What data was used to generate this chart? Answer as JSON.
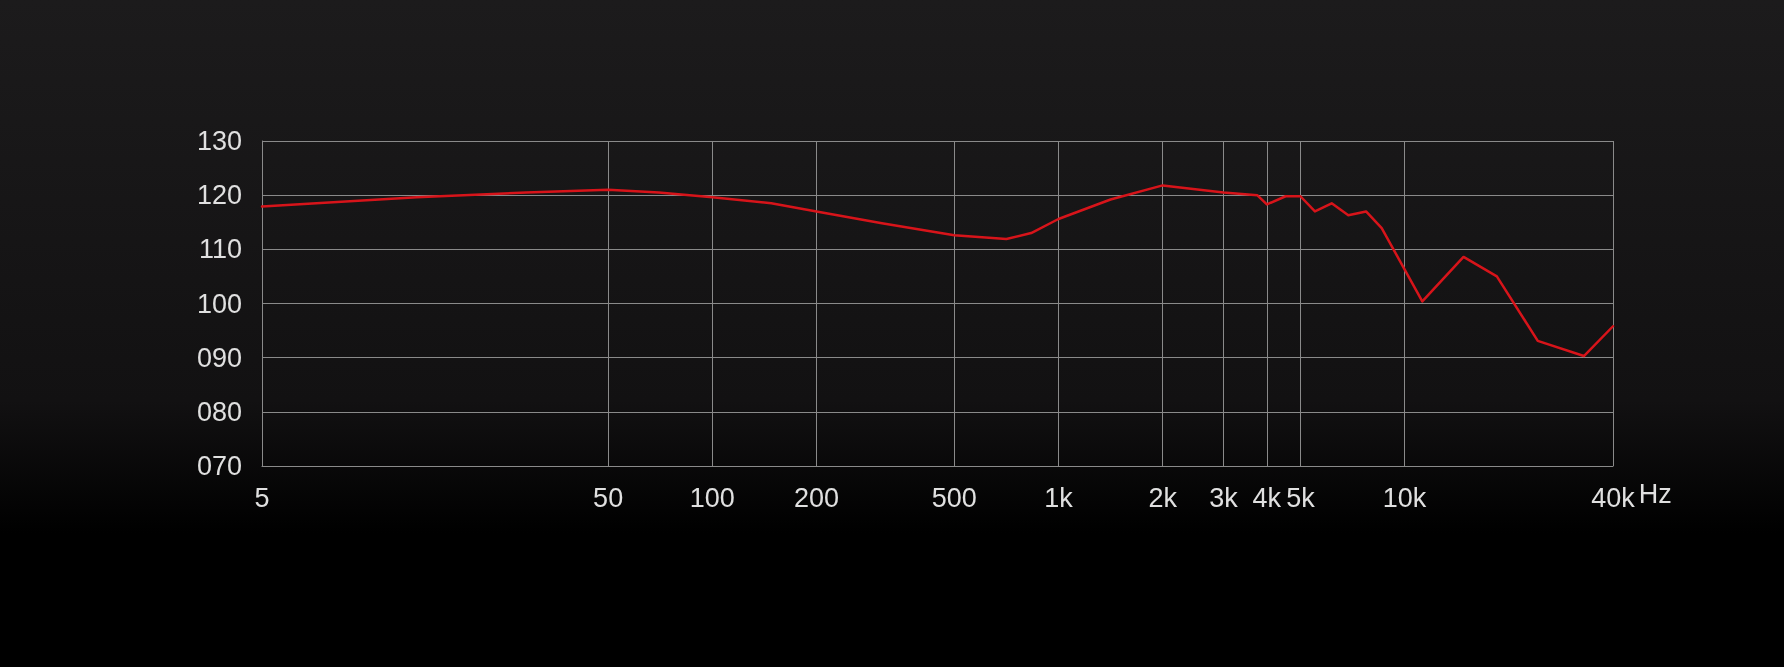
{
  "chart_data": {
    "type": "line",
    "xlabel": "Hz",
    "log": "x",
    "grid": true,
    "marker": "none",
    "line_style": "solid",
    "xlim": [
      5,
      40000
    ],
    "xticks": [
      5,
      50,
      100,
      200,
      500,
      {
        "value": 1000,
        "label": "1k"
      },
      {
        "value": 2000,
        "label": "2k"
      },
      {
        "value": 3000,
        "label": "3k"
      },
      {
        "value": 4000,
        "label": "4k"
      },
      {
        "value": 5000,
        "label": "5k"
      },
      {
        "value": 10000,
        "label": "10k"
      },
      {
        "value": 40000,
        "label": "40k"
      }
    ],
    "ylim": [
      70,
      130
    ],
    "yticks": [
      {
        "value": 70,
        "label": "070"
      },
      {
        "value": 80,
        "label": "080"
      },
      {
        "value": 90,
        "label": "090"
      },
      100,
      110,
      120,
      130
    ],
    "series": [
      {
        "color": "#d7141a",
        "x": [
          5,
          14,
          29,
          50,
          70,
          100,
          148,
          200,
          309,
          500,
          707,
          834,
          1000,
          1414,
          2000,
          3000,
          3751,
          4000,
          4532,
          5000,
          5507,
          6156,
          6877,
          7738,
          8587,
          11250,
          14800,
          18470,
          24250,
          32960,
          40000
        ],
        "values": [
          117.9,
          119.6,
          120.5,
          121,
          120.5,
          119.6,
          118.5,
          117,
          114.8,
          112.6,
          111.9,
          113,
          115.6,
          119.2,
          121.8,
          120.5,
          120,
          118.3,
          119.8,
          119.8,
          117,
          118.5,
          116.3,
          117,
          113.9,
          100.4,
          108.6,
          105,
          93.1,
          90.3,
          95.8
        ]
      }
    ]
  }
}
